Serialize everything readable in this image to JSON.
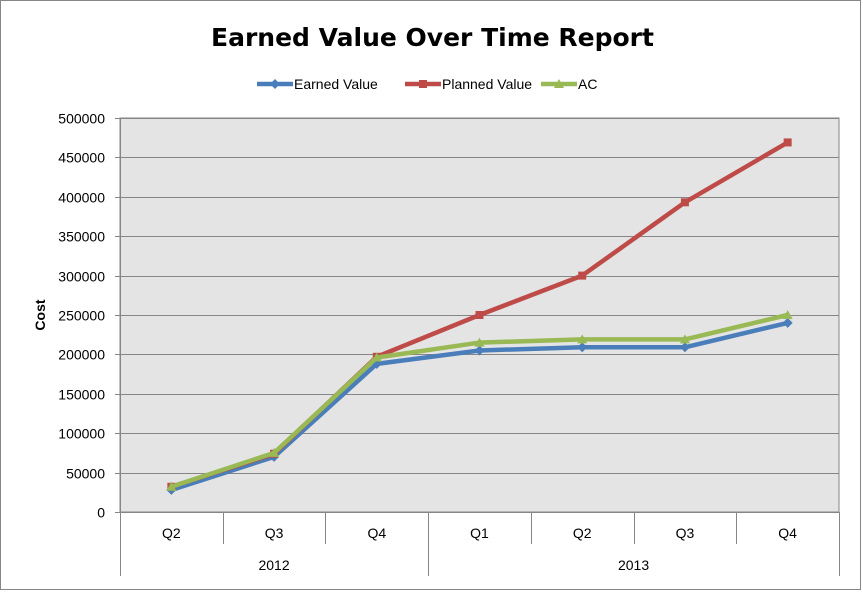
{
  "chart_data": {
    "type": "line",
    "title": "Earned Value Over Time Report",
    "xlabel": "",
    "ylabel": "Cost",
    "ylim": [
      0,
      500000
    ],
    "yticks": [
      "0",
      "50000",
      "100000",
      "150000",
      "200000",
      "250000",
      "300000",
      "350000",
      "400000",
      "450000",
      "500000"
    ],
    "categories": [
      "Q2",
      "Q3",
      "Q4",
      "Q1",
      "Q2",
      "Q3",
      "Q4"
    ],
    "category_groups": [
      {
        "label": "2012",
        "span": 3
      },
      {
        "label": "2013",
        "span": 4
      }
    ],
    "legend_position": "top",
    "grid": true,
    "series": [
      {
        "name": "Earned Value",
        "color": "#4a7ebb",
        "marker": "diamond",
        "values": [
          28000,
          70000,
          188000,
          205000,
          209000,
          209000,
          240000
        ]
      },
      {
        "name": "Planned Value",
        "color": "#be4b48",
        "marker": "square",
        "values": [
          32000,
          74000,
          197000,
          250000,
          300000,
          393000,
          469000
        ]
      },
      {
        "name": "AC",
        "color": "#98b954",
        "marker": "triangle",
        "values": [
          32000,
          75000,
          196000,
          215000,
          219000,
          219000,
          250000
        ]
      }
    ]
  }
}
